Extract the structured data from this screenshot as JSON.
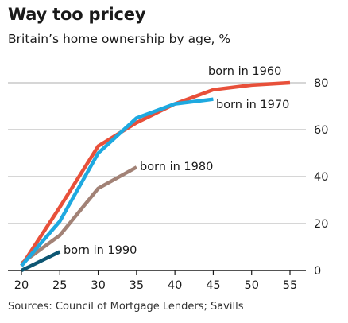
{
  "title": "Way too pricey",
  "subtitle": "Britain’s home ownership by age, %",
  "source": "Sources: Council of Mortgage Lenders; Savills",
  "chart_data": {
    "type": "line",
    "xlabel": "",
    "ylabel": "",
    "xlim": [
      20,
      55
    ],
    "ylim": [
      0,
      80
    ],
    "x_ticks": [
      20,
      25,
      30,
      35,
      40,
      45,
      50,
      55
    ],
    "y_ticks": [
      0,
      20,
      40,
      60,
      80
    ],
    "grid": "horizontal",
    "y_axis_side": "right",
    "series": [
      {
        "name": "born in 1960",
        "color": "#e8503a",
        "x": [
          20,
          25,
          30,
          35,
          40,
          45,
          50,
          55
        ],
        "y": [
          2,
          27,
          53,
          63,
          71,
          77,
          79,
          80
        ]
      },
      {
        "name": "born in 1970",
        "color": "#1ea9e0",
        "x": [
          20,
          25,
          30,
          35,
          40,
          45
        ],
        "y": [
          2,
          21,
          50,
          65,
          71,
          73
        ]
      },
      {
        "name": "born in 1980",
        "color": "#a28276",
        "x": [
          20,
          25,
          30,
          35
        ],
        "y": [
          3,
          15,
          35,
          44
        ]
      },
      {
        "name": "born in 1990",
        "color": "#0d5673",
        "x": [
          20,
          25
        ],
        "y": [
          0,
          8
        ]
      }
    ]
  }
}
